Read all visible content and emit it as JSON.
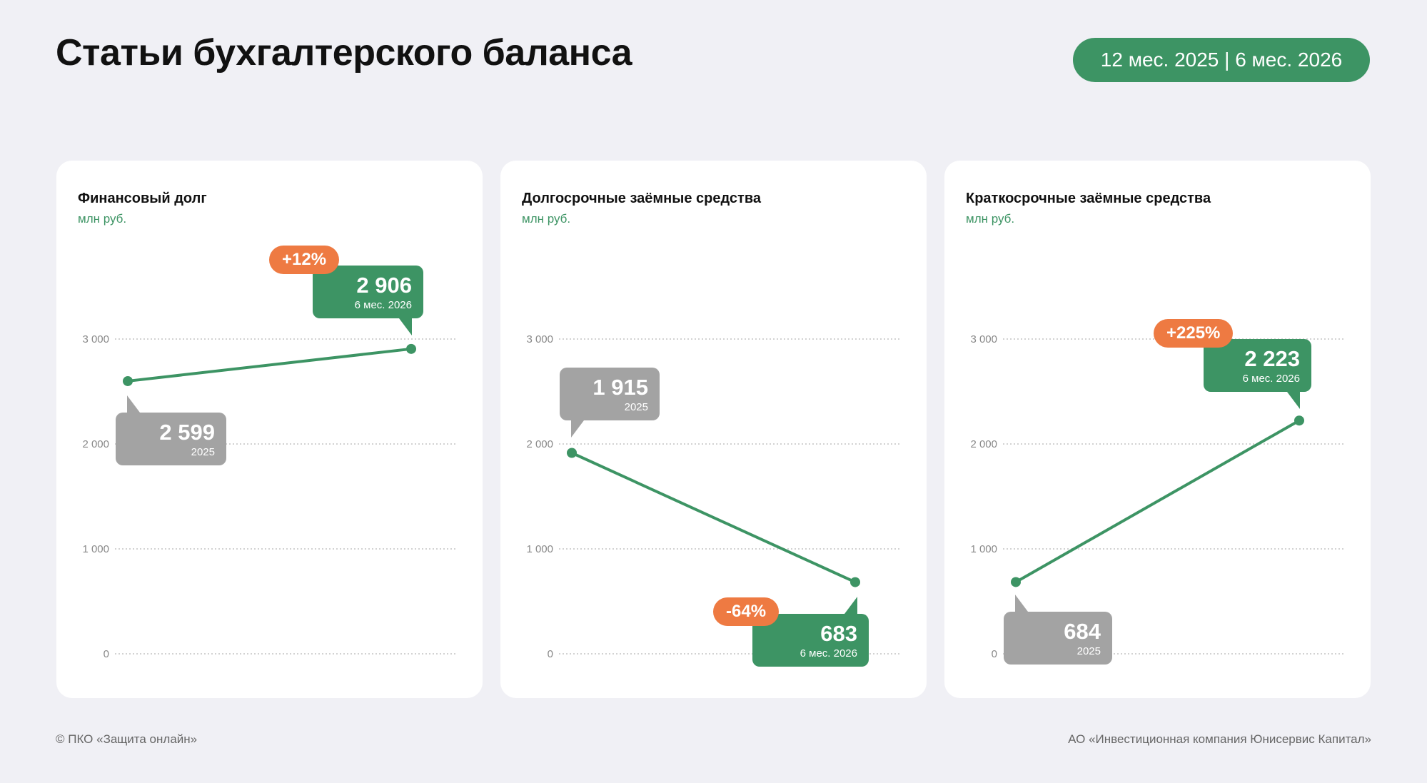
{
  "title": "Статьи бухгалтерского баланса",
  "period": "12 мес. 2025 | 6 мес. 2026",
  "colors": {
    "green": "#3d9464",
    "gray": "#a3a3a3",
    "orange": "#ee7a42",
    "grid": "#b8b8b8",
    "tick": "#888888"
  },
  "footer": {
    "left": "© ПКО «Защита онлайн»",
    "right": "АО «Инвестиционная компания Юнисервис Капитал»"
  },
  "chart_data": [
    {
      "type": "line",
      "title": "Финансовый долг",
      "unit": "млн руб.",
      "ylim": [
        0,
        3000
      ],
      "yticks": [
        "0",
        "1 000",
        "2 000",
        "3 000"
      ],
      "ytick_values": [
        0,
        1000,
        2000,
        3000
      ],
      "points": [
        {
          "label": "2025",
          "value": 2599,
          "value_text": "2 599"
        },
        {
          "label": "6 мес. 2026",
          "value": 2906,
          "value_text": "2 906"
        }
      ],
      "change": "+12%"
    },
    {
      "type": "line",
      "title": "Долгосрочные заёмные средства",
      "unit": "млн руб.",
      "ylim": [
        0,
        3000
      ],
      "yticks": [
        "0",
        "1 000",
        "2 000",
        "3 000"
      ],
      "ytick_values": [
        0,
        1000,
        2000,
        3000
      ],
      "points": [
        {
          "label": "2025",
          "value": 1915,
          "value_text": "1 915"
        },
        {
          "label": "6 мес. 2026",
          "value": 683,
          "value_text": "683"
        }
      ],
      "change": "-64%"
    },
    {
      "type": "line",
      "title": "Краткосрочные заёмные средства",
      "unit": "млн руб.",
      "ylim": [
        0,
        3000
      ],
      "yticks": [
        "0",
        "1 000",
        "2 000",
        "3 000"
      ],
      "ytick_values": [
        0,
        1000,
        2000,
        3000
      ],
      "points": [
        {
          "label": "2025",
          "value": 684,
          "value_text": "684"
        },
        {
          "label": "6 мес. 2026",
          "value": 2223,
          "value_text": "2 223"
        }
      ],
      "change": "+225%"
    }
  ]
}
